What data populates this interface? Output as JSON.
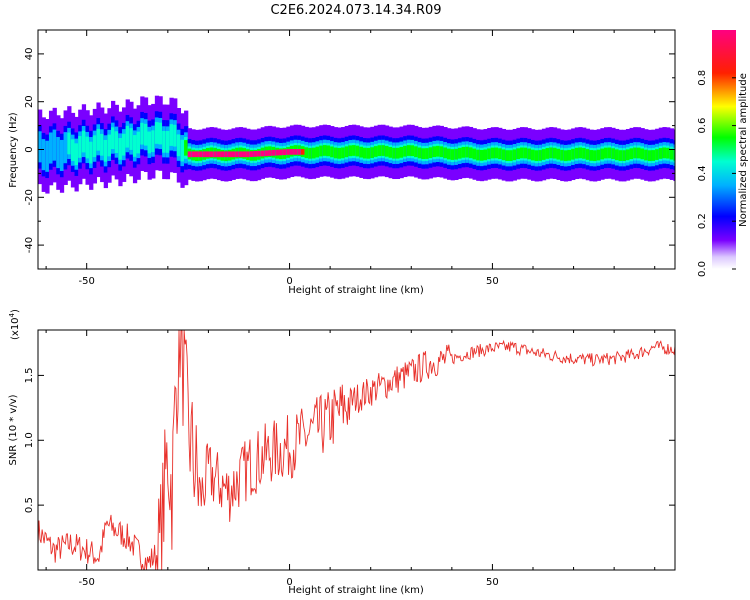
{
  "title": "C2E6.2024.073.14.34.R09",
  "colors": {
    "snr_line": "#e8302a",
    "frame": "#000000"
  },
  "chart_data": [
    {
      "type": "heatmap",
      "xlabel": "Height of straight line (km)",
      "ylabel": "Frequency (Hz)",
      "xlim": [
        -62,
        95
      ],
      "ylim": [
        -50,
        50
      ],
      "x_ticks": [
        -50,
        0,
        50
      ],
      "y_ticks": [
        -40,
        -20,
        0,
        20,
        40
      ],
      "colorbar": {
        "label": "Normalized spectral amplitude",
        "range": [
          0,
          1
        ],
        "ticks": [
          "0.0",
          "0.2",
          "0.4",
          "0.6",
          "0.8"
        ],
        "colormap": "rainbow (white→violet→blue→cyan→green→yellow→red→pink)"
      },
      "ridge": {
        "description": "Doppler frequency ridge",
        "x": [
          -62,
          -55,
          -50,
          -45,
          -40,
          -35,
          -30,
          -27,
          -25,
          -20,
          -10,
          0,
          10,
          30,
          50,
          70,
          95
        ],
        "center_freq": [
          -1,
          0,
          1,
          2,
          3,
          5,
          5,
          3,
          -2,
          -2,
          -2,
          -1,
          -1,
          -1,
          -2,
          -2,
          -2
        ],
        "peak_amplitude": [
          0.3,
          0.4,
          0.4,
          0.45,
          0.5,
          0.5,
          0.45,
          0.4,
          0.9,
          0.95,
          0.95,
          0.9,
          0.6,
          0.55,
          0.6,
          0.7,
          0.7
        ]
      }
    },
    {
      "type": "line",
      "xlabel": "Height of straight line (km)",
      "ylabel": "SNR (10 * v/v)",
      "y_multiplier": "(x10",
      "y_multiplier_exp": "4",
      "y_multiplier_close": ")",
      "xlim": [
        -62,
        95
      ],
      "ylim": [
        0.0,
        1.85
      ],
      "x_ticks": [
        -50,
        0,
        50
      ],
      "y_ticks": [
        "0.5",
        "1.0",
        "1.5"
      ],
      "series": [
        {
          "x": [
            -62,
            -58,
            -54,
            -50,
            -47,
            -45,
            -40,
            -35,
            -32,
            -30,
            -29,
            -28,
            -27,
            -25,
            -22,
            -20,
            -15,
            -10,
            -5,
            0,
            5,
            10,
            15,
            20,
            25,
            30,
            35,
            40,
            45,
            50,
            55,
            60,
            65,
            70,
            75,
            80,
            85,
            90,
            95
          ],
          "values": [
            0.3,
            0.15,
            0.2,
            0.15,
            0.1,
            0.35,
            0.25,
            0.05,
            0.15,
            0.9,
            0.6,
            1.4,
            1.85,
            1.1,
            0.55,
            0.75,
            0.6,
            0.8,
            0.9,
            0.95,
            1.05,
            1.15,
            1.3,
            1.38,
            1.45,
            1.52,
            1.6,
            1.63,
            1.68,
            1.71,
            1.72,
            1.68,
            1.65,
            1.63,
            1.62,
            1.63,
            1.66,
            1.72,
            1.7
          ]
        }
      ]
    }
  ]
}
